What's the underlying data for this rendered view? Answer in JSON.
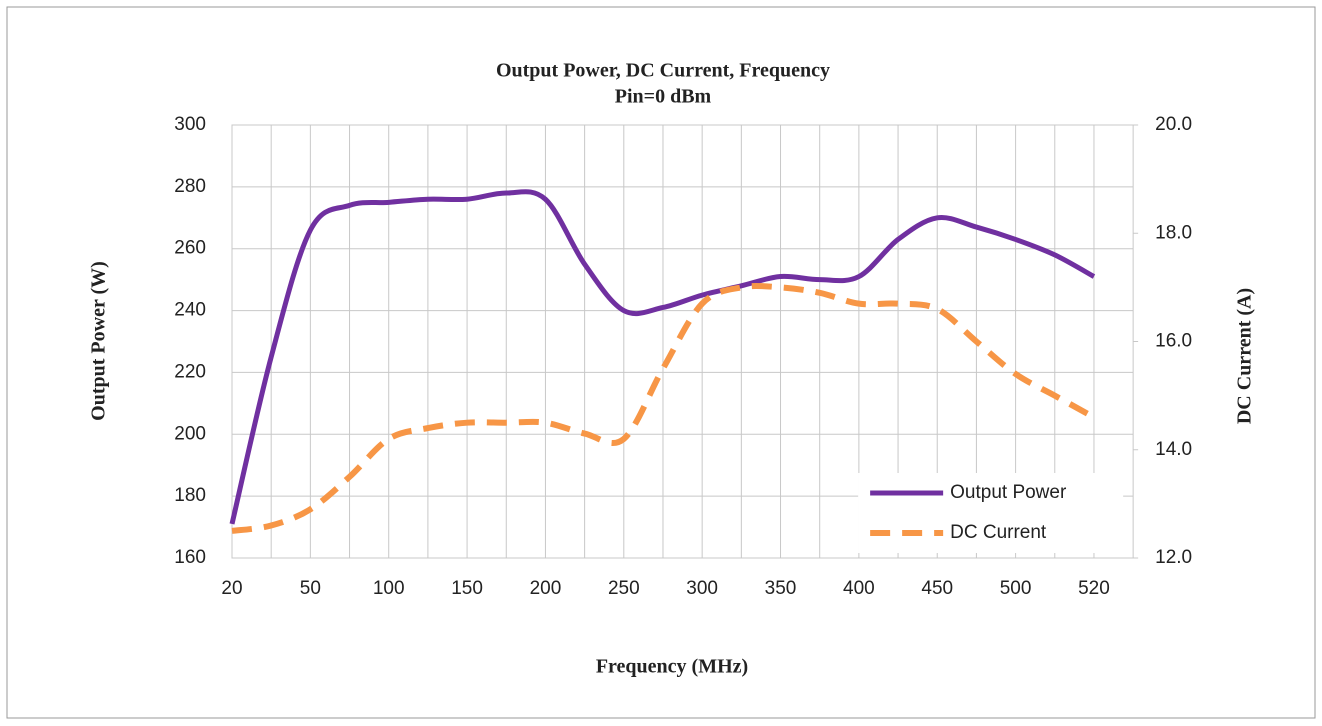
{
  "chart_data": {
    "type": "line",
    "title": "Output Power, DC Current,  Frequency",
    "subtitle": "Pin=0 dBm",
    "x_label": "Frequency (MHz)",
    "y_label": "Output Power (W)",
    "y2_label": "DC Current  (A)",
    "categories": [
      20,
      null,
      50,
      null,
      100,
      null,
      150,
      null,
      200,
      null,
      250,
      null,
      300,
      null,
      350,
      null,
      400,
      null,
      450,
      null,
      500,
      null,
      520
    ],
    "series": [
      {
        "name": "Output Power",
        "color": "#7030a0",
        "dash": false,
        "values": [
          171,
          225,
          266,
          274,
          275,
          276,
          276,
          278,
          276,
          255,
          240,
          241,
          245,
          248,
          251,
          250,
          251,
          263,
          270,
          267,
          263,
          258,
          251
        ]
      },
      {
        "name": "DC Current",
        "color": "#f79646",
        "dash": true,
        "axis": "y2",
        "values": [
          12.5,
          12.6,
          12.9,
          13.5,
          14.2,
          14.4,
          14.5,
          14.5,
          14.5,
          14.3,
          14.2,
          15.5,
          16.7,
          17.0,
          17.0,
          16.9,
          16.7,
          16.7,
          16.6,
          16.0,
          15.4,
          15.0,
          14.6
        ]
      }
    ],
    "ylim": [
      160,
      300
    ],
    "yticks": [
      160,
      180,
      200,
      220,
      240,
      260,
      280,
      300
    ],
    "y2lim": [
      12,
      20
    ],
    "y2ticks": [
      {
        "value": 12,
        "label": "12.0"
      },
      {
        "value": 14,
        "label": "14.0"
      },
      {
        "value": 16,
        "label": "16.0"
      },
      {
        "value": 18,
        "label": "18.0"
      },
      {
        "value": 20,
        "label": "20.0"
      }
    ],
    "grid": true,
    "legend": "lower right"
  }
}
